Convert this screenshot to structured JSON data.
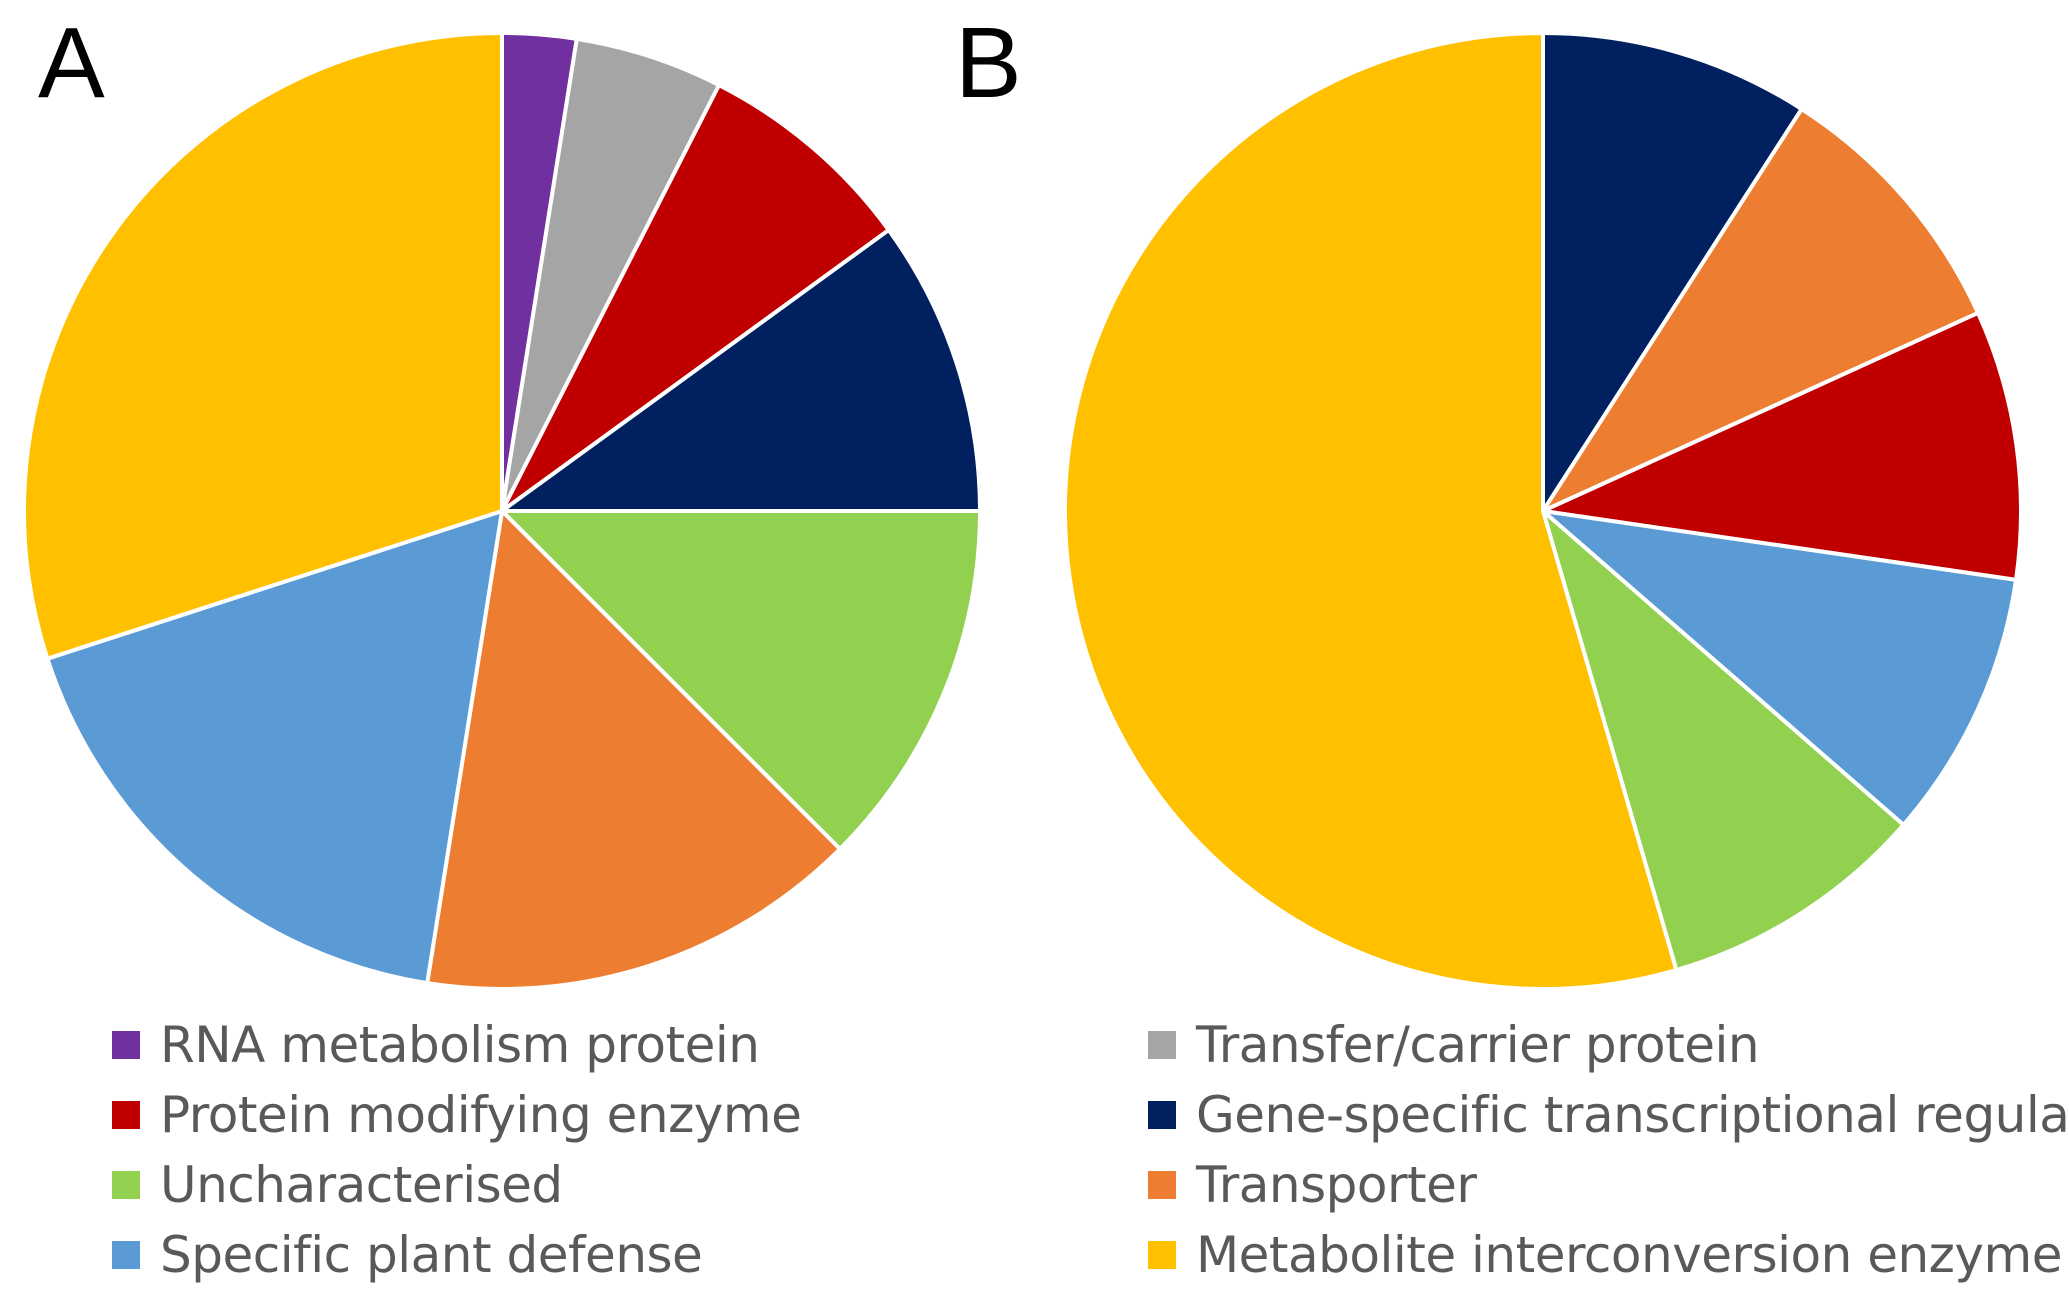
{
  "chart_data": [
    {
      "type": "pie",
      "panel_label": "A",
      "start_angle_deg": 0,
      "direction": "clockwise",
      "slices": [
        {
          "category": "RNA metabolism protein",
          "value": 2.5,
          "color": "#7030A0"
        },
        {
          "category": "Transfer/carrier protein",
          "value": 5.0,
          "color": "#A5A5A5"
        },
        {
          "category": "Protein modifying enzyme",
          "value": 7.5,
          "color": "#C00000"
        },
        {
          "category": "Gene-specific transcriptional regulator",
          "value": 10.0,
          "color": "#002060"
        },
        {
          "category": "Uncharacterised",
          "value": 12.5,
          "color": "#92D050"
        },
        {
          "category": "Transporter",
          "value": 15.0,
          "color": "#ED7D31"
        },
        {
          "category": "Specific plant defense",
          "value": 17.5,
          "color": "#5B9BD5"
        },
        {
          "category": "Metabolite interconversion enzyme",
          "value": 30.0,
          "color": "#FFC000"
        }
      ]
    },
    {
      "type": "pie",
      "panel_label": "B",
      "start_angle_deg": 0,
      "direction": "clockwise",
      "slices": [
        {
          "category": "Gene-specific transcriptional regulator",
          "value": 9.1,
          "color": "#002060"
        },
        {
          "category": "Transporter",
          "value": 9.1,
          "color": "#ED7D31"
        },
        {
          "category": "Protein modifying enzyme",
          "value": 9.1,
          "color": "#C00000"
        },
        {
          "category": "Specific plant defense",
          "value": 9.1,
          "color": "#5B9BD5"
        },
        {
          "category": "Uncharacterised",
          "value": 9.1,
          "color": "#92D050"
        },
        {
          "category": "Metabolite interconversion enzyme",
          "value": 54.5,
          "color": "#FFC000"
        }
      ]
    }
  ],
  "panels": {
    "a_label": "A",
    "b_label": "B"
  },
  "legend": {
    "left": [
      {
        "label": "RNA metabolism protein",
        "color": "#7030A0"
      },
      {
        "label": "Protein modifying enzyme",
        "color": "#C00000"
      },
      {
        "label": "Uncharacterised",
        "color": "#92D050"
      },
      {
        "label": "Specific plant defense",
        "color": "#5B9BD5"
      }
    ],
    "right": [
      {
        "label": "Transfer/carrier protein",
        "color": "#A5A5A5"
      },
      {
        "label": "Gene-specific transcriptional regulator",
        "color": "#002060"
      },
      {
        "label": "Transporter",
        "color": "#ED7D31"
      },
      {
        "label": "Metabolite interconversion enzyme",
        "color": "#FFC000"
      }
    ]
  }
}
